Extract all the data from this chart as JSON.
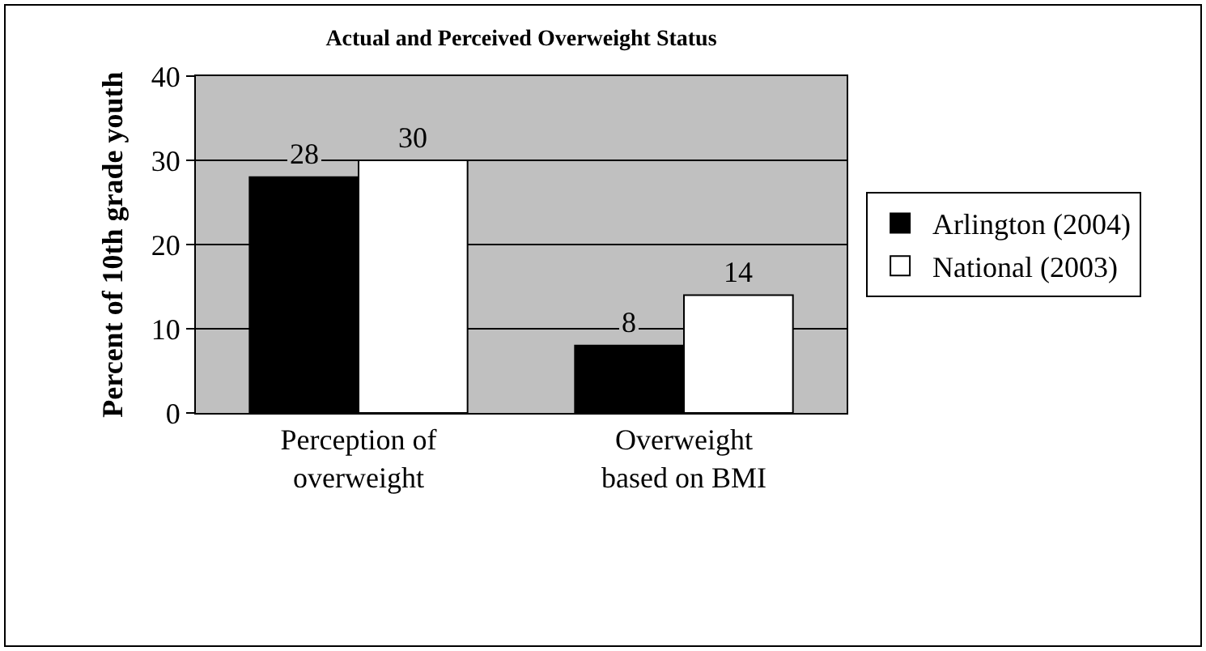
{
  "chart_data": {
    "type": "bar",
    "title": "Actual and Perceived Overweight Status",
    "ylabel": "Percent of 10th grade youth",
    "categories": [
      "Perception of overweight",
      "Overweight based on BMI"
    ],
    "series": [
      {
        "name": "Arlington (2004)",
        "color": "#000000",
        "values": [
          28,
          8
        ]
      },
      {
        "name": "National (2003)",
        "color": "#ffffff",
        "values": [
          30,
          14
        ]
      }
    ],
    "ylim": [
      0,
      40
    ],
    "yticks": [
      0,
      10,
      20,
      30,
      40
    ],
    "grid": "y",
    "legend": "right",
    "data_labels": true
  }
}
